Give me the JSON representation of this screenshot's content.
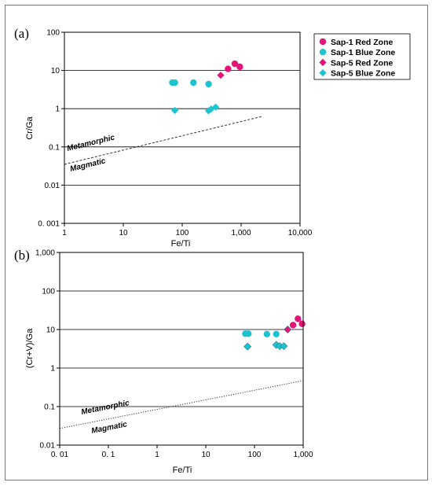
{
  "chart_data": [
    {
      "type": "scatter",
      "panel_label": "(a)",
      "xlabel": "Fe/Ti",
      "ylabel": "Cr/Ga",
      "xscale": "log",
      "yscale": "log",
      "xlim": [
        1,
        10000
      ],
      "ylim": [
        0.001,
        100
      ],
      "x_ticks": [
        "1",
        "10",
        "100",
        "1,000",
        "10,000"
      ],
      "y_ticks": [
        "0. 001",
        "0.01",
        "0.1",
        "1",
        "10",
        "100"
      ],
      "horizontal_grid": true,
      "legend": {
        "placement": "right, outside plot",
        "entries": [
          {
            "label": "Sap-1 Red Zone",
            "marker": "circle",
            "color": "#e4157a"
          },
          {
            "label": "Sap-1 Blue Zone",
            "marker": "circle",
            "color": "#1ec3d2"
          },
          {
            "label": "Sap-5 Red Zone",
            "marker": "diamond",
            "color": "#e4157a"
          },
          {
            "label": "Sap-5 Blue Zone",
            "marker": "diamond",
            "color": "#1ec3d2"
          }
        ]
      },
      "series": [
        {
          "name": "Sap-1 Red Zone",
          "marker": "circle",
          "color": "#e4157a",
          "points": [
            [
              600,
              11
            ],
            [
              780,
              15
            ],
            [
              950,
              12.5
            ]
          ]
        },
        {
          "name": "Sap-1 Blue Zone",
          "marker": "circle",
          "color": "#1ec3d2",
          "points": [
            [
              68,
              4.8
            ],
            [
              75,
              4.8
            ],
            [
              155,
              4.8
            ],
            [
              280,
              4.4
            ]
          ]
        },
        {
          "name": "Sap-5 Red Zone",
          "marker": "diamond",
          "color": "#e4157a",
          "points": [
            [
              450,
              7.5
            ]
          ]
        },
        {
          "name": "Sap-5 Blue Zone",
          "marker": "diamond",
          "color": "#1ec3d2",
          "points": [
            [
              75,
              0.9
            ],
            [
              280,
              0.88
            ],
            [
              310,
              0.98
            ],
            [
              370,
              1.1
            ]
          ]
        }
      ],
      "boundary_line": {
        "style": "dashed",
        "from": [
          1,
          0.035
        ],
        "to": [
          2200,
          0.62
        ]
      },
      "region_labels": {
        "upper": "Metamorphic",
        "lower": "Magmatic"
      }
    },
    {
      "type": "scatter",
      "panel_label": "(b)",
      "xlabel": "Fe/Ti",
      "ylabel": "(Cr+V)/Ga",
      "xscale": "log",
      "yscale": "log",
      "xlim": [
        0.01,
        1000
      ],
      "ylim": [
        0.01,
        1000
      ],
      "x_ticks": [
        "0. 01",
        "0. 1",
        "1",
        "10",
        "100",
        "1,000"
      ],
      "y_ticks": [
        "0.01",
        "0.1",
        "1",
        "10",
        "100",
        "1,000"
      ],
      "horizontal_grid": true,
      "series": [
        {
          "name": "Sap-1 Red Zone",
          "marker": "circle",
          "color": "#e4157a",
          "points": [
            [
              620,
              13
            ],
            [
              780,
              19
            ],
            [
              950,
              14
            ]
          ]
        },
        {
          "name": "Sap-1 Blue Zone",
          "marker": "circle",
          "color": "#1ec3d2",
          "points": [
            [
              65,
              7.8
            ],
            [
              75,
              7.8
            ],
            [
              180,
              7.6
            ],
            [
              280,
              7.6
            ]
          ]
        },
        {
          "name": "Sap-5 Red Zone",
          "marker": "diamond",
          "color": "#e4157a",
          "points": [
            [
              480,
              10
            ]
          ]
        },
        {
          "name": "Sap-5 Blue Zone",
          "marker": "diamond",
          "color": "#1ec3d2",
          "points": [
            [
              72,
              3.6
            ],
            [
              280,
              4
            ],
            [
              330,
              3.7
            ],
            [
              400,
              3.7
            ]
          ]
        }
      ],
      "boundary_line": {
        "style": "dotted",
        "from": [
          0.01,
          0.027
        ],
        "to": [
          1000,
          0.47
        ]
      },
      "region_labels": {
        "upper": "Metamorphic",
        "lower": "Magmatic"
      }
    }
  ]
}
